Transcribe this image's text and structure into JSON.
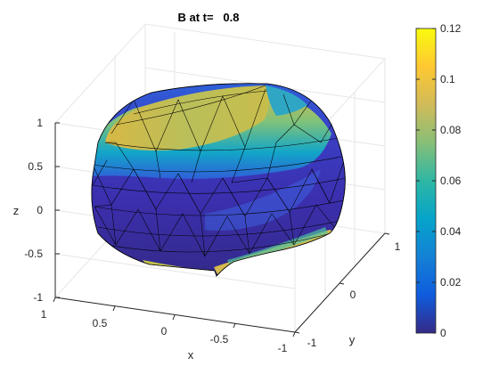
{
  "chart_data": {
    "type": "surface3d",
    "title": "B at t=   0.8",
    "xlabel": "x",
    "ylabel": "y",
    "zlabel": "z",
    "x_ticks": [
      "1",
      "0.5",
      "0",
      "-0.5",
      "-1"
    ],
    "y_ticks": [
      "-1",
      "0",
      "1"
    ],
    "z_ticks": [
      "1",
      "0.5",
      "0",
      "-0.5",
      "-1"
    ],
    "xlim": [
      -1,
      1
    ],
    "ylim": [
      -1,
      1
    ],
    "zlim": [
      -1,
      1
    ],
    "colorbar": {
      "colormap": "parula",
      "range": [
        0,
        0.12
      ],
      "tick_labels": [
        "0.12",
        "0.1",
        "0.08",
        "0.06",
        "0.04",
        "0.02",
        "0"
      ]
    },
    "surface": "triangulated spherical membrane, opened at top; color highest (~0.1) on rim, lowest (~0) on lower body",
    "grid": true,
    "box": true
  }
}
